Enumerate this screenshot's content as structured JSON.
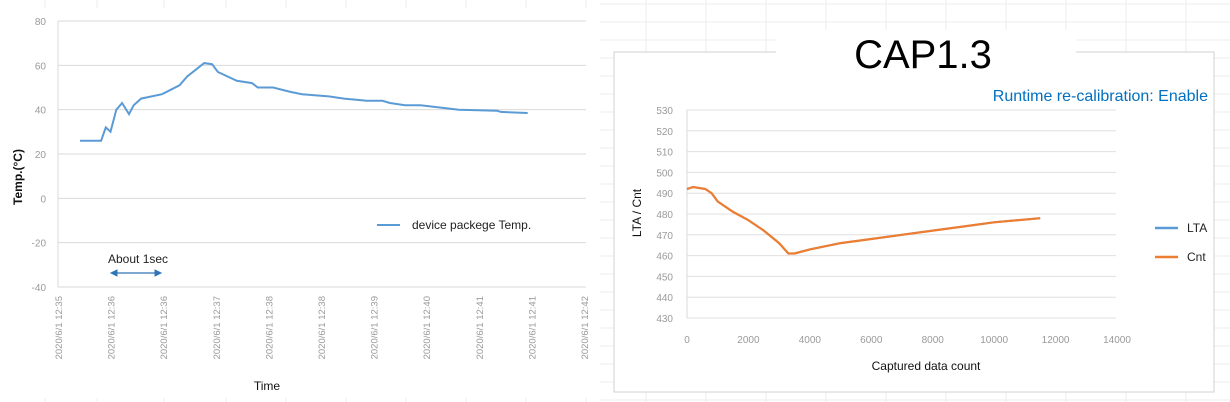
{
  "chart_data": [
    {
      "type": "line",
      "title": "",
      "xlabel": "Time",
      "ylabel": "Temp.(°C)",
      "ylim": [
        -40,
        80
      ],
      "yticks": [
        80,
        60,
        40,
        20,
        0,
        -20,
        -40
      ],
      "x_tick_labels": [
        "2020/6/1 12:35",
        "2020/6/1 12:36",
        "2020/6/1 12:36",
        "2020/6/1 12:37",
        "2020/6/1 12:38",
        "2020/6/1 12:38",
        "2020/6/1 12:39",
        "2020/6/1 12:40",
        "2020/6/1 12:41",
        "2020/6/1 12:41",
        "2020/6/1 12:42"
      ],
      "grid": true,
      "legend_position": "right-middle",
      "annotation": "About 1sec",
      "series": [
        {
          "name": "device packege Temp.",
          "color": "#5b9bd5",
          "x": [
            0.4,
            0.8,
            0.89,
            0.98,
            1.09,
            1.2,
            1.33,
            1.42,
            1.56,
            1.96,
            2.29,
            2.44,
            2.76,
            2.91,
            3.02,
            3.38,
            3.67,
            3.78,
            4.07,
            4.4,
            4.62,
            5.13,
            5.42,
            5.85,
            6.15,
            6.29,
            6.58,
            6.87,
            7.24,
            7.6,
            8.33,
            8.4,
            8.91
          ],
          "y": [
            26,
            26,
            32,
            30,
            40,
            43,
            38,
            42,
            45,
            47,
            51,
            55,
            61,
            60.5,
            57,
            53,
            52,
            50,
            50,
            48,
            47,
            46,
            45,
            44,
            44,
            43,
            42,
            42,
            41,
            40,
            39.5,
            39,
            38.5
          ]
        }
      ]
    },
    {
      "type": "line",
      "title": "CAP1.3",
      "subtitle": "Runtime re-calibration: Enable",
      "subtitle_color": "#0070c0",
      "xlabel": "Captured data count",
      "ylabel": "LTA / Cnt",
      "xlim": [
        0,
        14000
      ],
      "ylim": [
        430,
        530
      ],
      "xticks": [
        0,
        2000,
        4000,
        6000,
        8000,
        10000,
        12000,
        14000
      ],
      "yticks": [
        530,
        520,
        510,
        500,
        490,
        480,
        470,
        460,
        450,
        440,
        430
      ],
      "grid": true,
      "legend_position": "right",
      "series": [
        {
          "name": "LTA",
          "color": "#5b9bd5",
          "x": [
            0,
            200,
            600,
            800,
            1000,
            1500,
            2000,
            2500,
            3000,
            3300,
            3500,
            4000,
            5000,
            6000,
            7000,
            8000,
            9000,
            10000,
            11500
          ],
          "y": [
            492,
            493,
            492,
            490,
            486,
            481,
            477,
            472,
            466,
            461,
            461,
            463,
            466,
            468,
            470,
            472,
            474,
            476,
            478
          ]
        },
        {
          "name": "Cnt",
          "color": "#ed7d31",
          "x": [
            0,
            200,
            600,
            800,
            1000,
            1500,
            2000,
            2500,
            3000,
            3300,
            3500,
            4000,
            5000,
            6000,
            7000,
            8000,
            9000,
            10000,
            11500
          ],
          "y": [
            492,
            493,
            492,
            490,
            486,
            481,
            477,
            472,
            466,
            461,
            461,
            463,
            466,
            468,
            470,
            472,
            474,
            476,
            478
          ]
        }
      ]
    }
  ]
}
